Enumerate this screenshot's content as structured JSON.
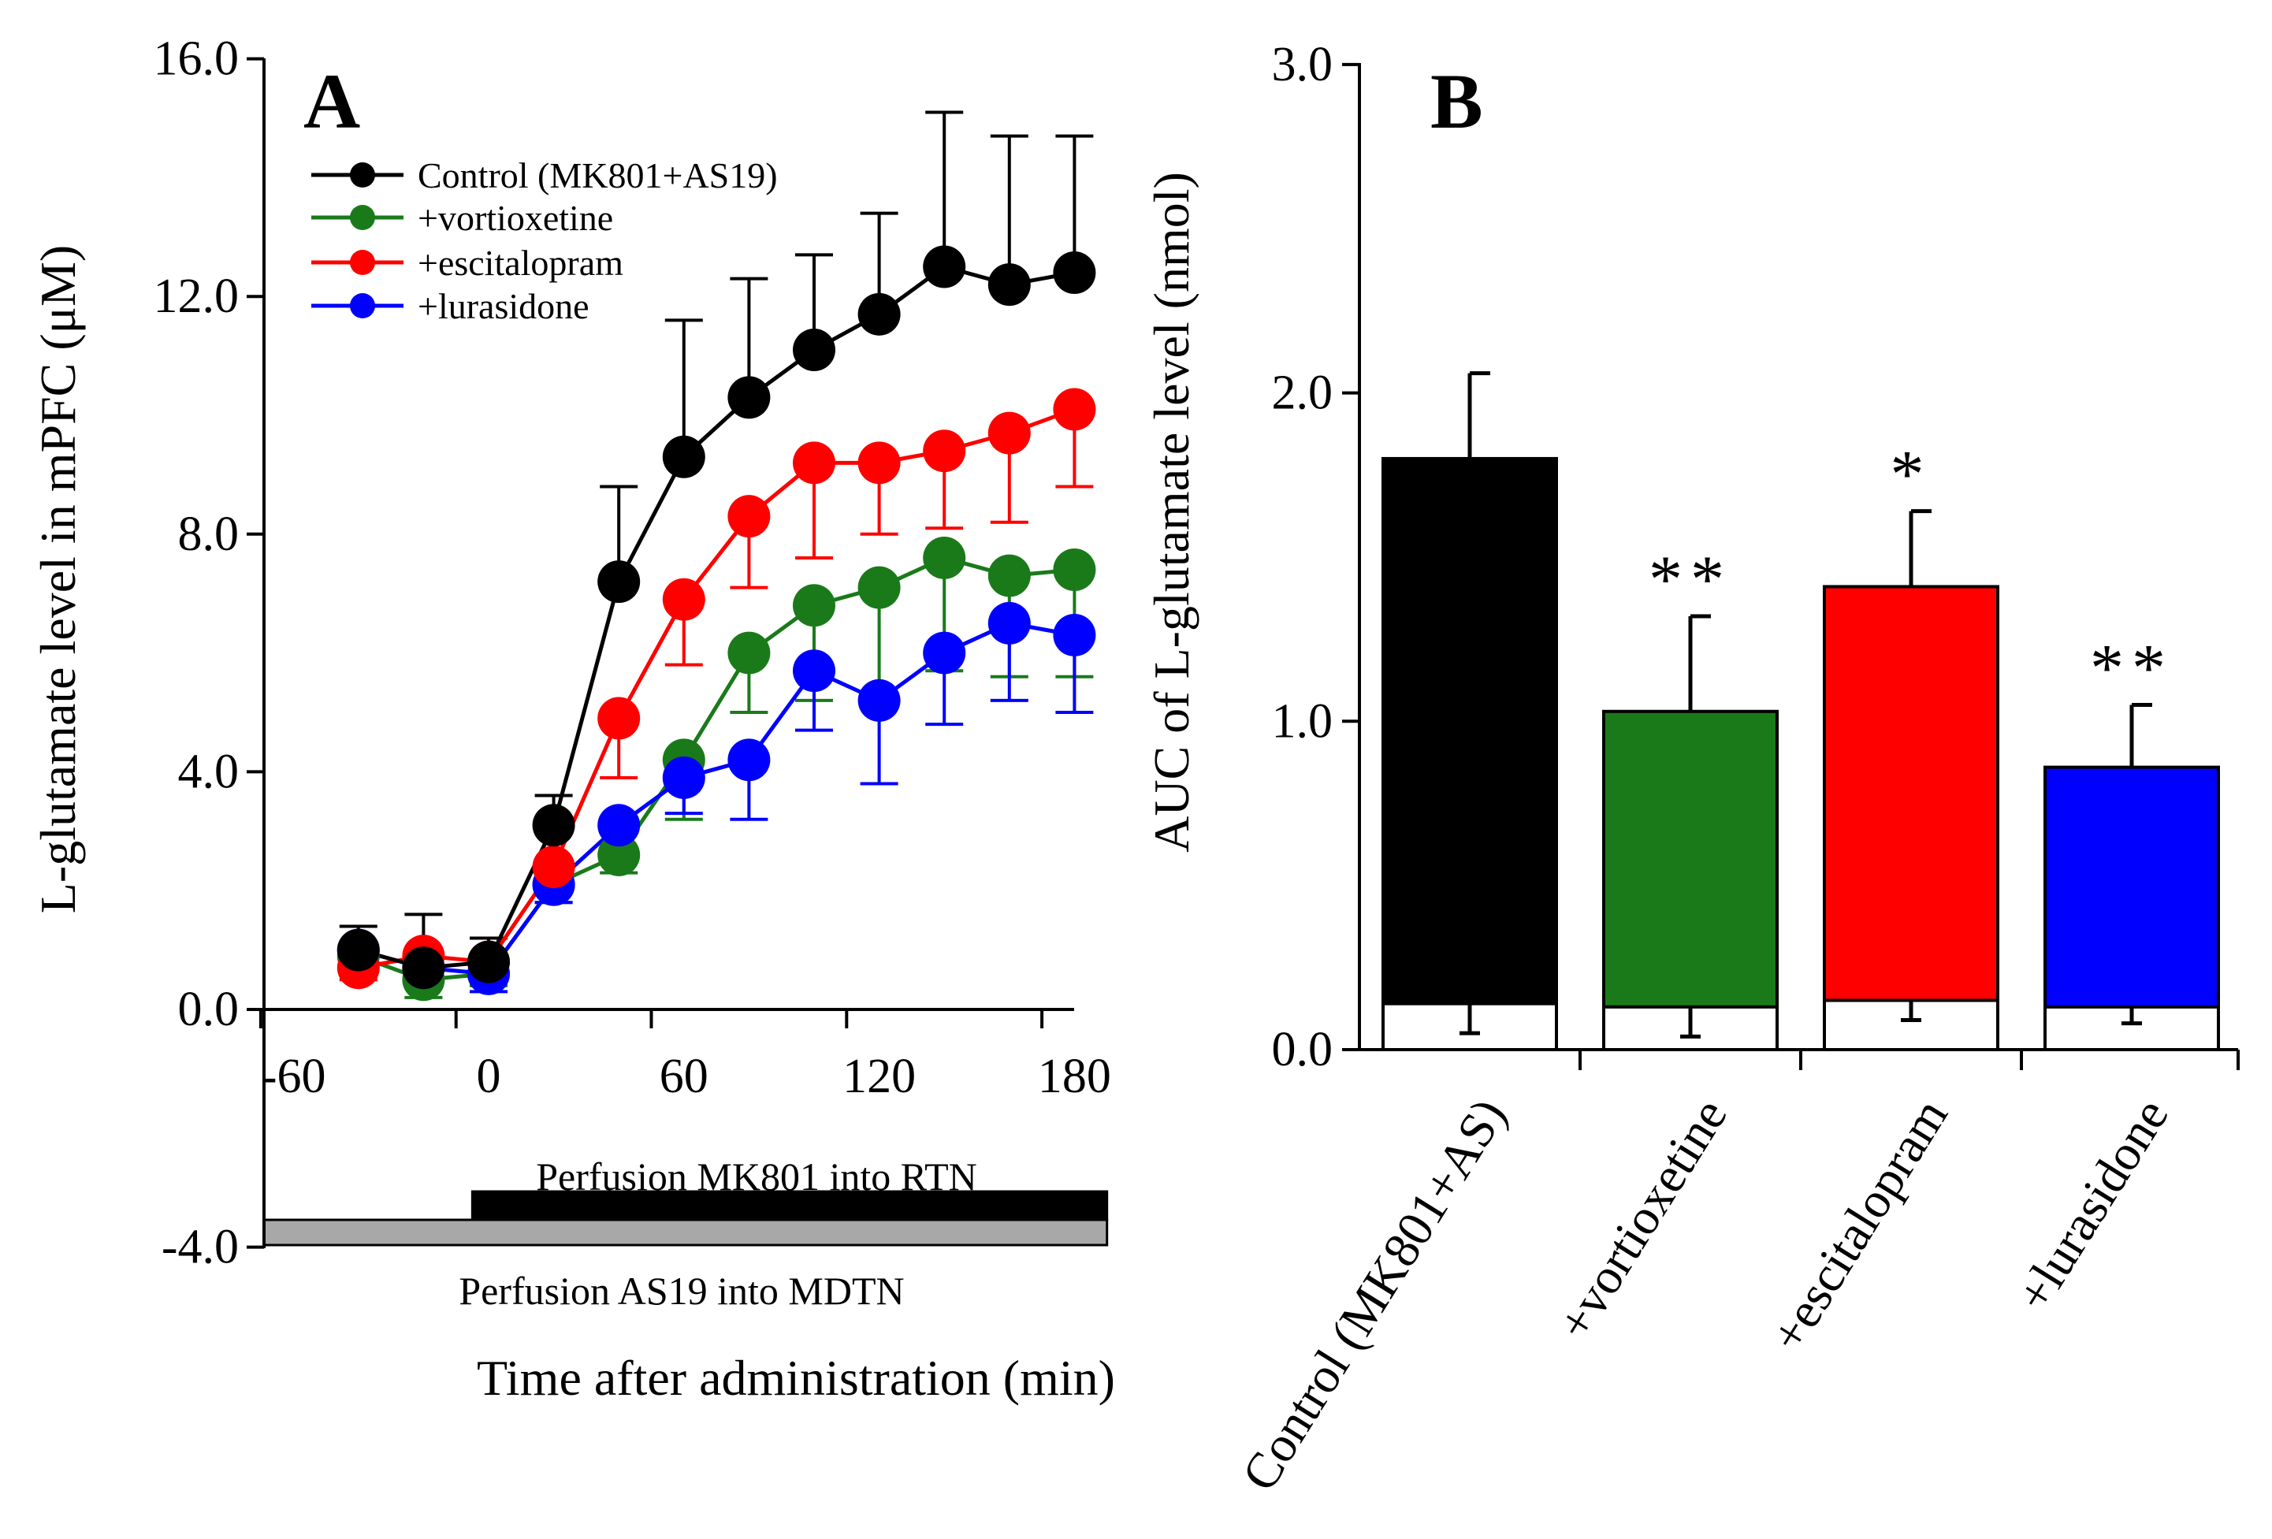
{
  "chart_data": [
    {
      "panel_label": "A",
      "type": "line",
      "xlabel": "Time after administration (min)",
      "ylabel": "L-glutamate level in mPFC (μM)",
      "xlim": [
        -80,
        190
      ],
      "ylim": [
        -4,
        16
      ],
      "x_ticks": [
        -60,
        0,
        60,
        120,
        180
      ],
      "x_tick_labels": [
        "-60",
        "0",
        "60",
        "120",
        "180"
      ],
      "y_ticks": [
        -4,
        0,
        4,
        8,
        12,
        16
      ],
      "y_tick_labels": [
        "-4.0",
        "0.0",
        "4.0",
        "8.0",
        "12.0",
        "16.0"
      ],
      "x": [
        -40,
        -20,
        0,
        20,
        40,
        60,
        80,
        100,
        120,
        140,
        160,
        180
      ],
      "series": [
        {
          "name": "Control (MK801+AS19)",
          "color": "#000000",
          "values": [
            1.0,
            0.7,
            0.8,
            3.1,
            7.2,
            9.3,
            10.3,
            11.1,
            11.7,
            12.5,
            12.2,
            12.4
          ],
          "errors": [
            0.4,
            0.9,
            0.4,
            0.5,
            1.6,
            2.3,
            2.0,
            1.6,
            1.7,
            2.6,
            2.5,
            2.3
          ],
          "error_direction": "up"
        },
        {
          "name": "+vortioxetine",
          "color": "#1a7a1a",
          "values": [
            0.9,
            0.5,
            0.6,
            2.1,
            2.6,
            4.2,
            6.0,
            6.8,
            7.1,
            7.6,
            7.3,
            7.4
          ],
          "errors": [
            0.2,
            0.3,
            0.2,
            0.3,
            0.3,
            1.0,
            1.0,
            1.6,
            1.8,
            1.9,
            1.7,
            1.8
          ],
          "error_direction": "down"
        },
        {
          "name": "+escitalopram",
          "color": "#ff0000",
          "values": [
            0.7,
            0.9,
            0.8,
            2.4,
            4.9,
            6.9,
            8.3,
            9.2,
            9.2,
            9.4,
            9.7,
            10.1
          ],
          "errors": [
            0.2,
            0.2,
            0.2,
            0.3,
            1.0,
            1.1,
            1.2,
            1.6,
            1.2,
            1.3,
            1.5,
            1.3
          ],
          "error_direction": "down"
        },
        {
          "name": "+lurasidone",
          "color": "#0000ff",
          "values": [
            1.0,
            0.7,
            0.6,
            2.1,
            3.1,
            3.9,
            4.2,
            5.7,
            5.2,
            6.0,
            6.5,
            6.3
          ],
          "errors": [
            0.4,
            0.3,
            0.3,
            0.3,
            0.6,
            0.6,
            1.0,
            1.0,
            1.4,
            1.2,
            1.3,
            1.3
          ],
          "error_direction": "down"
        }
      ],
      "perfusion_bars": [
        {
          "label": "Perfusion MK801 into RTN",
          "start": 0,
          "end": 190,
          "color": "#000000"
        },
        {
          "label": "Perfusion AS19 into MDTN",
          "start": -80,
          "end": 190,
          "color": "#a8a8a8"
        }
      ]
    },
    {
      "panel_label": "B",
      "type": "bar",
      "ylabel": "AUC of L-glutamate level (nmol)",
      "ylim": [
        0,
        3
      ],
      "y_ticks": [
        0,
        1,
        2,
        3
      ],
      "y_tick_labels": [
        "0.0",
        "1.0",
        "2.0",
        "3.0"
      ],
      "categories": [
        "Control (MK801+AS)",
        "+vortioxetine",
        "+escitalopram",
        "+lurasidone"
      ],
      "values": [
        1.8,
        1.03,
        1.41,
        0.86
      ],
      "errors": [
        0.26,
        0.29,
        0.23,
        0.19
      ],
      "baseline_values": [
        0.14,
        0.13,
        0.15,
        0.13
      ],
      "baseline_errors": [
        0.09,
        0.09,
        0.06,
        0.05
      ],
      "colors": [
        "#000000",
        "#1a7a1a",
        "#ff0000",
        "#0000ff"
      ],
      "significance": [
        "",
        "**",
        "*",
        "**"
      ]
    }
  ]
}
